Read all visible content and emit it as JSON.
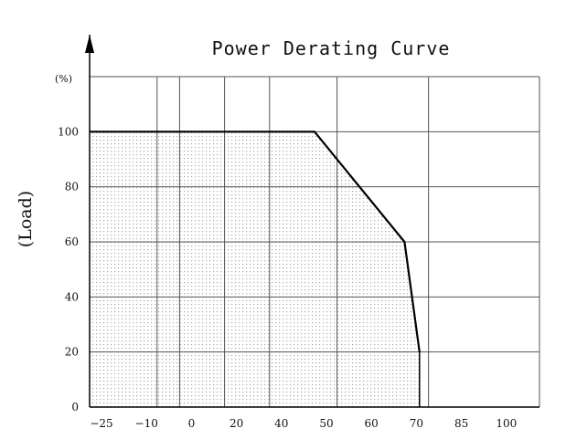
{
  "chart_data": {
    "type": "line",
    "title": "Power Derating Curve",
    "xlabel": "",
    "ylabel": "(Load)",
    "y_unit": "(%)",
    "grid": true,
    "x_ticks": [
      -25,
      -10,
      0,
      20,
      40,
      50,
      60,
      70,
      85,
      100
    ],
    "y_ticks": [
      0,
      20,
      40,
      60,
      80,
      100
    ],
    "ylim": [
      0,
      120
    ],
    "series": [
      {
        "x": [
          -25,
          50,
          70,
          75
        ],
        "y": [
          100,
          100,
          60,
          20
        ]
      }
    ],
    "shaded_region": "area under curve (dotted)",
    "axis_arrow": true
  }
}
